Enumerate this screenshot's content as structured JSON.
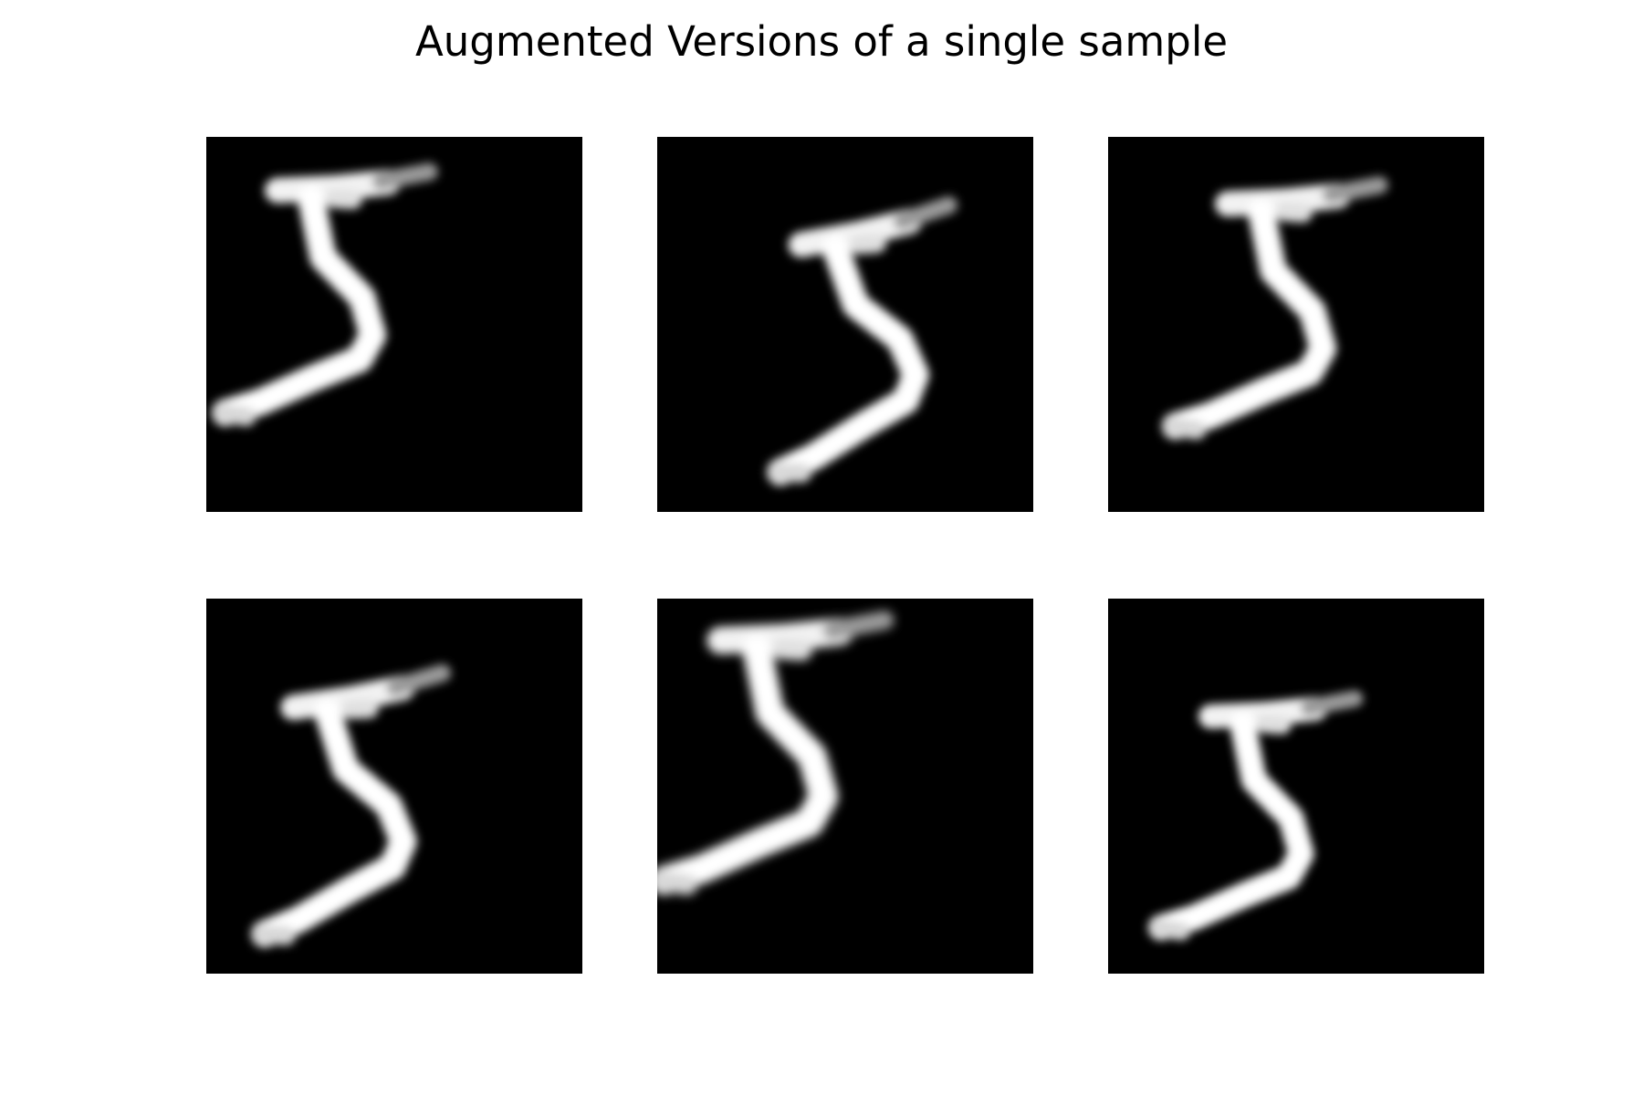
{
  "figure": {
    "title": "Augmented Versions of a single sample",
    "colormap": "gray",
    "background": "#ffffff",
    "grid": {
      "rows": 2,
      "cols": 3
    }
  },
  "panels": [
    {
      "index": 1,
      "depicts": "digit-5-augmented-original-pose"
    },
    {
      "index": 2,
      "depicts": "digit-5-augmented-shifted-right-down"
    },
    {
      "index": 3,
      "depicts": "digit-5-augmented-shifted-right"
    },
    {
      "index": 4,
      "depicts": "digit-5-augmented-shifted-down"
    },
    {
      "index": 5,
      "depicts": "digit-5-augmented-shifted-up-left"
    },
    {
      "index": 6,
      "depicts": "digit-5-augmented-scaled"
    }
  ]
}
